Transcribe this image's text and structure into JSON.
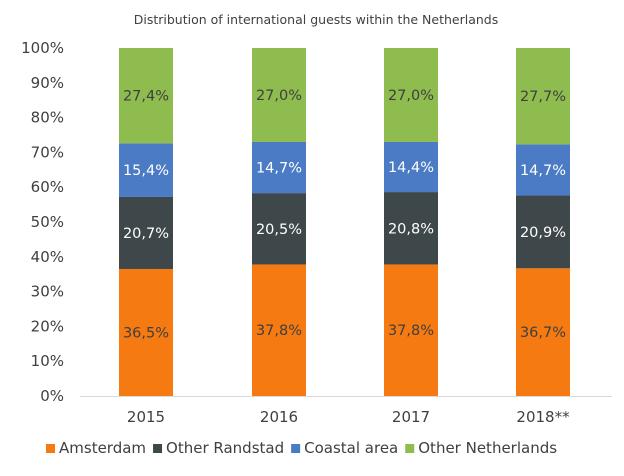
{
  "chart_data": {
    "type": "bar",
    "stacked": true,
    "percent_stacked": true,
    "title": "Distribution of international guests within the Netherlands",
    "categories": [
      "2015",
      "2016",
      "2017",
      "2018**"
    ],
    "ylim": [
      0,
      100
    ],
    "yticks": [
      "0%",
      "10%",
      "20%",
      "30%",
      "40%",
      "50%",
      "60%",
      "70%",
      "80%",
      "90%",
      "100%"
    ],
    "grid": false,
    "legend_position": "bottom",
    "series": [
      {
        "name": "Amsterdam",
        "color": "#F47A11",
        "label_color": "#404040",
        "values": [
          36.5,
          37.8,
          37.8,
          36.7
        ],
        "labels": [
          "36,5%",
          "37,8%",
          "37,8%",
          "36,7%"
        ]
      },
      {
        "name": "Other Randstad",
        "color": "#3E4749",
        "label_color": "#ffffff",
        "values": [
          20.7,
          20.5,
          20.8,
          20.9
        ],
        "labels": [
          "20,7%",
          "20,5%",
          "20,8%",
          "20,9%"
        ]
      },
      {
        "name": "Coastal area",
        "color": "#4A7BC4",
        "label_color": "#ffffff",
        "values": [
          15.4,
          14.7,
          14.4,
          14.7
        ],
        "labels": [
          "15,4%",
          "14,7%",
          "14,4%",
          "14,7%"
        ]
      },
      {
        "name": "Other Netherlands",
        "color": "#8FBC4F",
        "label_color": "#404040",
        "values": [
          27.4,
          27.0,
          27.0,
          27.7
        ],
        "labels": [
          "27,4%",
          "27,0%",
          "27,0%",
          "27,7%"
        ]
      }
    ]
  }
}
